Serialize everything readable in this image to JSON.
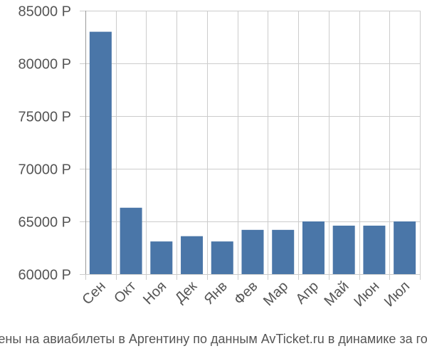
{
  "chart_data": {
    "type": "bar",
    "categories": [
      "Сен",
      "Окт",
      "Ноя",
      "Дек",
      "Янв",
      "Фев",
      "Мар",
      "Апр",
      "Май",
      "Июн",
      "Июл"
    ],
    "values": [
      83000,
      66300,
      63100,
      63600,
      63100,
      64200,
      64200,
      65000,
      64600,
      64600,
      65000
    ],
    "ylim": [
      60000,
      85000
    ],
    "yticks": [
      60000,
      65000,
      70000,
      75000,
      80000,
      85000
    ],
    "ytick_labels": [
      "60000 Р",
      "65000 Р",
      "70000 Р",
      "75000 Р",
      "80000 Р",
      "85000 Р"
    ],
    "grid": true,
    "bar_color": "#4a76a8",
    "caption": "Цены на авиабилеты в Аргентину по данным AvTicket.ru в динамике за год."
  }
}
